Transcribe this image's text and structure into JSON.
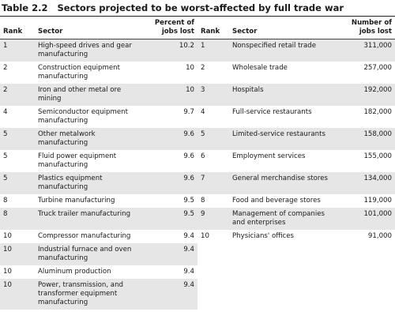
{
  "title": {
    "label": "Table 2.2",
    "text": "Sectors projected to be worst-affected by full trade war"
  },
  "table": {
    "header": [
      "Rank",
      "Sector",
      "Percent of jobs lost",
      "Rank",
      "Sector",
      "Number of jobs lost"
    ],
    "rows": [
      [
        "1",
        "High-speed drives and gear manufacturing",
        "10.2",
        "1",
        "Nonspecified retail trade",
        "311,000"
      ],
      [
        "2",
        "Construction equipment manufacturing",
        "10",
        "2",
        "Wholesale trade",
        "257,000"
      ],
      [
        "2",
        "Iron and other metal ore mining",
        "10",
        "3",
        "Hospitals",
        "192,000"
      ],
      [
        "4",
        "Semiconductor equipment manufacturing",
        "9.7",
        "4",
        "Full-service restaurants",
        "182,000"
      ],
      [
        "5",
        "Other metalwork manufacturing",
        "9.6",
        "5",
        "Limited-service restaurants",
        "158,000"
      ],
      [
        "5",
        "Fluid power equipment manufacturing",
        "9.6",
        "6",
        "Employment services",
        "155,000"
      ],
      [
        "5",
        "Plastics equipment manufacturing",
        "9.6",
        "7",
        "General merchandise stores",
        "134,000"
      ],
      [
        "8",
        "Turbine manufacturing",
        "9.5",
        "8",
        "Food and beverage stores",
        "119,000"
      ],
      [
        "8",
        "Truck trailer manufacturing",
        "9.5",
        "9",
        "Management of companies and enterprises",
        "101,000"
      ],
      [
        "10",
        "Compressor manufacturing",
        "9.4",
        "10",
        "Physicians' offices",
        "91,000"
      ],
      [
        "10",
        "Industrial furnace and oven manufacturing",
        "9.4"
      ],
      [
        "10",
        "Aluminum production",
        "9.4"
      ],
      [
        "10",
        "Power, transmission, and transformer equipment manufacturing",
        "9.4"
      ]
    ]
  }
}
